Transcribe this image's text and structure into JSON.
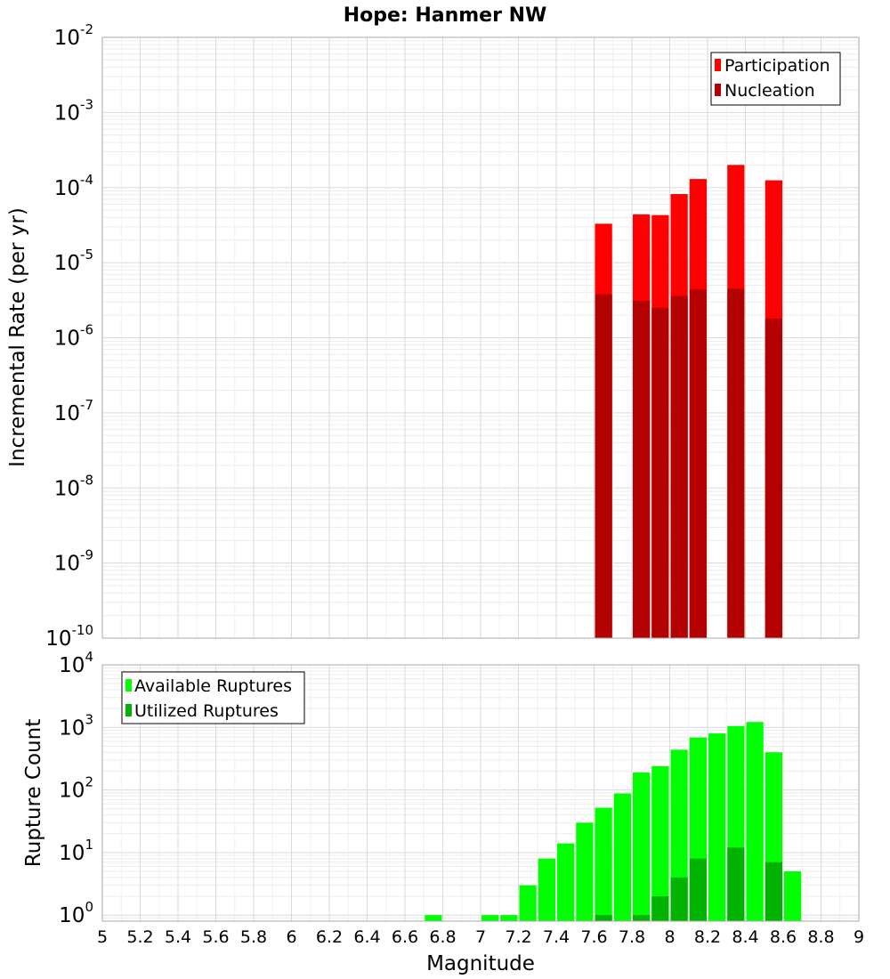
{
  "chart_data": [
    {
      "type": "bar",
      "title": "Hope: Hanmer NW",
      "xlabel": "",
      "ylabel": "Incremental Rate (per yr)",
      "yscale": "log",
      "ylim": [
        1e-10,
        0.01
      ],
      "xlim": [
        5,
        9
      ],
      "bin_width": 0.1,
      "legend_position": "top-right",
      "ytick_exponents": [
        "-10",
        "-9",
        "-8",
        "-7",
        "-6",
        "-5",
        "-4",
        "-3",
        "-2"
      ],
      "series": [
        {
          "name": "Participation",
          "color": "#ff0000",
          "points": [
            {
              "x": 7.65,
              "y": 3.3e-05
            },
            {
              "x": 7.85,
              "y": 4.4e-05
            },
            {
              "x": 7.95,
              "y": 4.3e-05
            },
            {
              "x": 8.05,
              "y": 8.2e-05
            },
            {
              "x": 8.15,
              "y": 0.00013
            },
            {
              "x": 8.35,
              "y": 0.0002
            },
            {
              "x": 8.55,
              "y": 0.000125
            }
          ]
        },
        {
          "name": "Nucleation",
          "color": "#b30000",
          "points": [
            {
              "x": 7.65,
              "y": 3.8e-06
            },
            {
              "x": 7.85,
              "y": 3.1e-06
            },
            {
              "x": 7.95,
              "y": 2.5e-06
            },
            {
              "x": 8.05,
              "y": 3.6e-06
            },
            {
              "x": 8.15,
              "y": 4.4e-06
            },
            {
              "x": 8.35,
              "y": 4.5e-06
            },
            {
              "x": 8.55,
              "y": 1.8e-06
            }
          ]
        }
      ]
    },
    {
      "type": "bar",
      "title": "",
      "xlabel": "Magnitude",
      "ylabel": "Rupture Count",
      "yscale": "log",
      "ylim": [
        0.8,
        10000
      ],
      "xlim": [
        5,
        9
      ],
      "bin_width": 0.1,
      "legend_position": "top-left",
      "ytick_exponents": [
        "0",
        "1",
        "2",
        "3",
        "4"
      ],
      "xticks": [
        "5",
        "5.2",
        "5.4",
        "5.6",
        "5.8",
        "6",
        "6.2",
        "6.4",
        "6.6",
        "6.8",
        "7",
        "7.2",
        "7.4",
        "7.6",
        "7.8",
        "8",
        "8.2",
        "8.4",
        "8.6",
        "8.8",
        "9"
      ],
      "series": [
        {
          "name": "Available Ruptures",
          "color": "#00ff00",
          "points": [
            {
              "x": 6.75,
              "y": 1
            },
            {
              "x": 7.05,
              "y": 1
            },
            {
              "x": 7.15,
              "y": 1
            },
            {
              "x": 7.25,
              "y": 3
            },
            {
              "x": 7.35,
              "y": 8
            },
            {
              "x": 7.45,
              "y": 14
            },
            {
              "x": 7.55,
              "y": 30
            },
            {
              "x": 7.65,
              "y": 52
            },
            {
              "x": 7.75,
              "y": 88
            },
            {
              "x": 7.85,
              "y": 190
            },
            {
              "x": 7.95,
              "y": 240
            },
            {
              "x": 8.05,
              "y": 440
            },
            {
              "x": 8.15,
              "y": 690
            },
            {
              "x": 8.25,
              "y": 800
            },
            {
              "x": 8.35,
              "y": 1050
            },
            {
              "x": 8.45,
              "y": 1220
            },
            {
              "x": 8.55,
              "y": 400
            },
            {
              "x": 8.65,
              "y": 5
            }
          ]
        },
        {
          "name": "Utilized Ruptures",
          "color": "#00b300",
          "points": [
            {
              "x": 7.65,
              "y": 1
            },
            {
              "x": 7.85,
              "y": 1
            },
            {
              "x": 7.95,
              "y": 2
            },
            {
              "x": 8.05,
              "y": 4
            },
            {
              "x": 8.15,
              "y": 8
            },
            {
              "x": 8.35,
              "y": 12
            },
            {
              "x": 8.55,
              "y": 7
            }
          ]
        }
      ]
    }
  ]
}
